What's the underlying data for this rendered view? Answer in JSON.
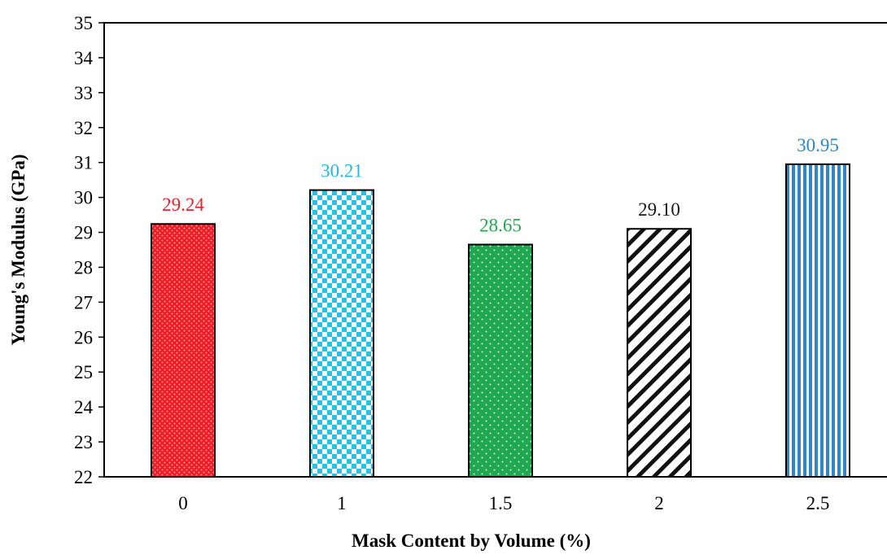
{
  "chart_data": {
    "type": "bar",
    "title": "",
    "xlabel": "Mask Content by Volume (%)",
    "ylabel": "Young's Modulus (GPa)",
    "categories": [
      "0",
      "1",
      "1.5",
      "2",
      "2.5"
    ],
    "values": [
      29.24,
      30.21,
      28.65,
      29.1,
      30.95
    ],
    "data_labels": [
      "29.24",
      "30.21",
      "28.65",
      "29.10",
      "30.95"
    ],
    "ylim": [
      22,
      35
    ],
    "yticks": [
      "22",
      "23",
      "24",
      "25",
      "26",
      "27",
      "28",
      "29",
      "30",
      "31",
      "32",
      "33",
      "34",
      "35"
    ],
    "grid": false,
    "legend": "none",
    "bar_styles": [
      {
        "pattern": "fine-dots",
        "fill": "#ed1c24",
        "pattern_color": "#ff9a9a",
        "label_color": "#e8232a"
      },
      {
        "pattern": "checkerboard",
        "fill": "#29c0e8",
        "pattern_color": "#ffffff",
        "label_color": "#2ab5e0"
      },
      {
        "pattern": "sparse-dots",
        "fill": "#1fa84f",
        "pattern_color": "#d8f5e0",
        "label_color": "#1fa84f"
      },
      {
        "pattern": "diagonal-stripes",
        "fill": "#ffffff",
        "pattern_color": "#111111",
        "label_color": "#1a1a1a"
      },
      {
        "pattern": "vertical-stripes",
        "fill": "#ffffff",
        "pattern_color": "#2e86c8",
        "label_color": "#2e86c8"
      }
    ]
  }
}
